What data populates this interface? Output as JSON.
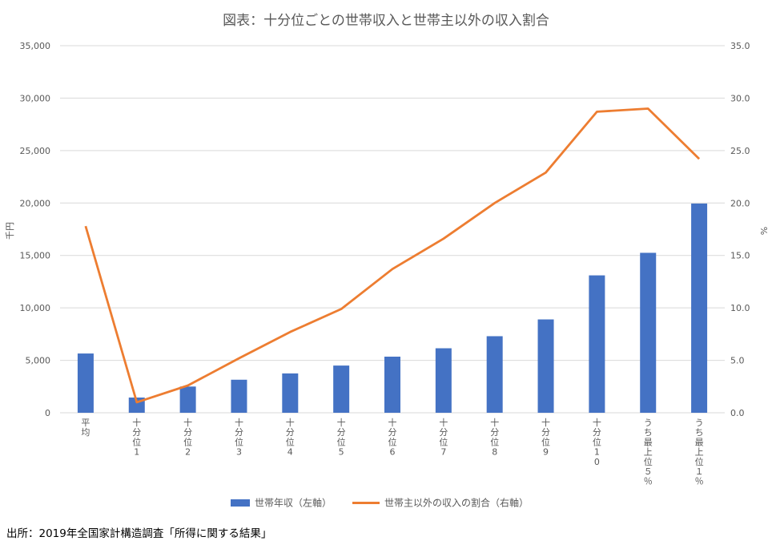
{
  "chart_data": {
    "type": "bar",
    "title": "図表：十分位ごとの世帯収入と世帯主以外の収入割合",
    "categories": [
      "平均",
      "十分位1",
      "十分位2",
      "十分位3",
      "十分位4",
      "十分位5",
      "十分位6",
      "十分位7",
      "十分位8",
      "十分位9",
      "十分位10",
      "うち最上位５％",
      "うち最上位１％"
    ],
    "y_left": {
      "label": "千円",
      "ylim": [
        0,
        35000
      ],
      "ticks": [
        "0",
        "5,000",
        "10,000",
        "15,000",
        "20,000",
        "25,000",
        "30,000",
        "35,000"
      ],
      "tick_values": [
        0,
        5000,
        10000,
        15000,
        20000,
        25000,
        30000,
        35000
      ]
    },
    "y_right": {
      "label": "%",
      "ylim": [
        0,
        35
      ],
      "ticks": [
        "0.0",
        "5.0",
        "10.0",
        "15.0",
        "20.0",
        "25.0",
        "30.0",
        "35.0"
      ],
      "tick_values": [
        0,
        5,
        10,
        15,
        20,
        25,
        30,
        35
      ]
    },
    "series": [
      {
        "name": "世帯年収（左軸）",
        "type": "bar",
        "axis": "left",
        "color": "#4472C4",
        "values": [
          5650,
          1450,
          2500,
          3150,
          3750,
          4500,
          5350,
          6150,
          7300,
          8900,
          13100,
          15250,
          19950
        ]
      },
      {
        "name": "世帯主以外の収入の割合（右軸）",
        "type": "line",
        "axis": "right",
        "color": "#ED7D31",
        "values": [
          17.8,
          1.0,
          2.6,
          5.2,
          7.7,
          9.9,
          13.7,
          16.6,
          20.0,
          22.9,
          28.7,
          29.0,
          24.2
        ]
      }
    ],
    "grid": true,
    "legend_position": "bottom"
  },
  "source": "出所：2019年全国家計構造調査「所得に関する結果」"
}
